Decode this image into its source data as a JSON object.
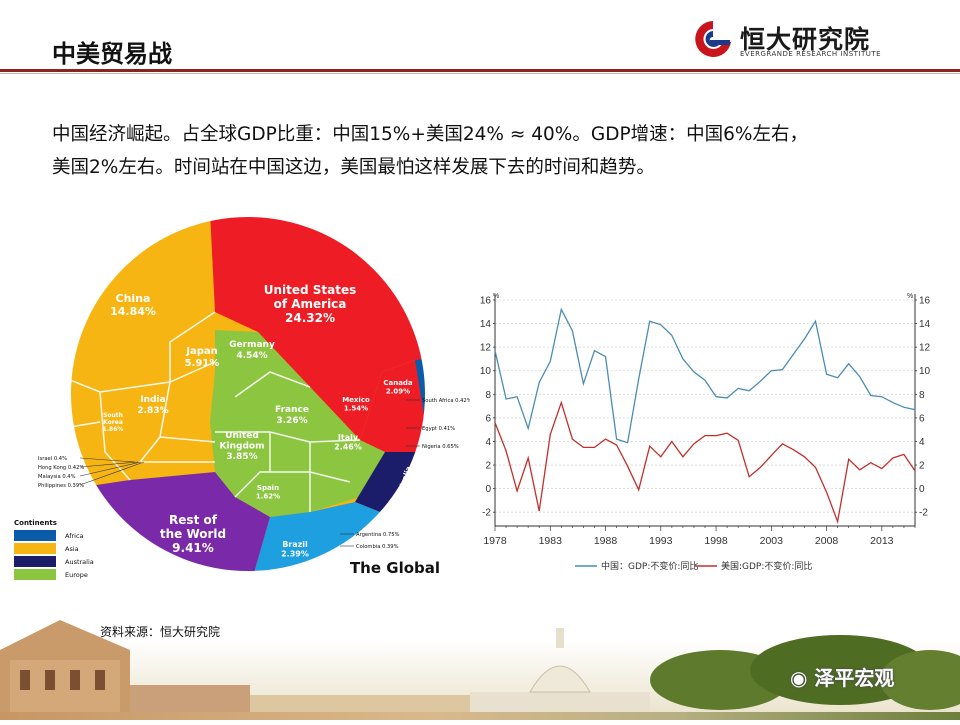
{
  "header": {
    "title": "中美贸易战",
    "logo_cn": "恒大研究院",
    "logo_en": "EVERGRANDE RESEARCH INSTITUTE"
  },
  "body": {
    "line1": "中国经济崛起。占全球GDP比重：中国15%+美国24%  ≈ 40%。GDP增速：中国6%左右，",
    "line2": "美国2%左右。时间站在中国这边，美国最怕这样发展下去的时间和趋势。"
  },
  "source": "资料来源：恒大研究院",
  "watermark": "泽平宏观",
  "colors": {
    "asia": "#f7b514",
    "america": "#ee1c24",
    "europe": "#8cc53f",
    "africa": "#0b5ca8",
    "australia": "#1b1d6a",
    "rest": "#7a2aa8",
    "brazil": "#1e9fe0",
    "china_line": "#4a8db3",
    "us_line": "#c0302c",
    "rule": "#8a2321"
  },
  "chart_data": [
    {
      "type": "pie",
      "title": "The Global",
      "legend": {
        "title": "Continents",
        "items": [
          {
            "name": "Africa",
            "color": "#0b5ca8"
          },
          {
            "name": "Asia",
            "color": "#f7b514"
          },
          {
            "name": "Australia",
            "color": "#1b1d6a"
          },
          {
            "name": "Europe",
            "color": "#8cc53f"
          }
        ]
      },
      "labels": [
        {
          "name": "United States of America",
          "value": "24.32%"
        },
        {
          "name": "China",
          "value": "14.84%"
        },
        {
          "name": "Japan",
          "value": "5.91%"
        },
        {
          "name": "Germany",
          "value": "4.54%"
        },
        {
          "name": "France",
          "value": "3.26%"
        },
        {
          "name": "United Kingdom",
          "value": "3.85%"
        },
        {
          "name": "India",
          "value": "2.83%"
        },
        {
          "name": "Italy",
          "value": "2.46%"
        },
        {
          "name": "Canada",
          "value": "2.09%"
        },
        {
          "name": "Mexico",
          "value": "1.54%"
        },
        {
          "name": "Spain",
          "value": "1.62%"
        },
        {
          "name": "Australia",
          "value": "1.81%"
        },
        {
          "name": "Brazil",
          "value": "2.39%"
        },
        {
          "name": "South Korea",
          "value": "1.86%"
        },
        {
          "name": "Rest of the World",
          "value": "9.41%"
        }
      ],
      "small_labels": [
        "South Africa 0.42%",
        "Egypt 0.41%",
        "Nigeria 0.65%",
        "Argentina 0.75%",
        "Colombia 0.39%",
        "Israel 0.4%",
        "Hong Kong 0.42%",
        "Malaysia 0.4%",
        "Philippines 0.39%"
      ]
    },
    {
      "type": "line",
      "ylim": [
        -3,
        16
      ],
      "y_ticks": [
        -2,
        0,
        2,
        4,
        6,
        8,
        10,
        12,
        14,
        16
      ],
      "y_unit": "%",
      "x_ticks": [
        1978,
        1983,
        1988,
        1993,
        1998,
        2003,
        2008,
        2013
      ],
      "xlim": [
        1978,
        2016
      ],
      "x": [
        1978,
        1979,
        1980,
        1981,
        1982,
        1983,
        1984,
        1985,
        1986,
        1987,
        1988,
        1989,
        1990,
        1991,
        1992,
        1993,
        1994,
        1995,
        1996,
        1997,
        1998,
        1999,
        2000,
        2001,
        2002,
        2003,
        2004,
        2005,
        2006,
        2007,
        2008,
        2009,
        2010,
        2011,
        2012,
        2013,
        2014,
        2015,
        2016
      ],
      "series": [
        {
          "name": "中国：GDP:不变价:同比",
          "color": "#4a8db3",
          "values": [
            11.7,
            7.6,
            7.8,
            5.1,
            9.0,
            10.8,
            15.2,
            13.4,
            8.9,
            11.7,
            11.2,
            4.2,
            3.9,
            9.3,
            14.2,
            13.9,
            13.0,
            11.0,
            9.9,
            9.2,
            7.8,
            7.7,
            8.5,
            8.3,
            9.1,
            10.0,
            10.1,
            11.4,
            12.7,
            14.2,
            9.7,
            9.4,
            10.6,
            9.5,
            7.9,
            7.8,
            7.3,
            6.9,
            6.7
          ]
        },
        {
          "name": "美国:GDP:不变价:同比",
          "color": "#c0302c",
          "values": [
            5.6,
            3.2,
            -0.2,
            2.6,
            -1.9,
            4.6,
            7.3,
            4.2,
            3.5,
            3.5,
            4.2,
            3.7,
            1.9,
            -0.1,
            3.6,
            2.7,
            4.0,
            2.7,
            3.8,
            4.5,
            4.5,
            4.7,
            4.1,
            1.0,
            1.8,
            2.8,
            3.8,
            3.3,
            2.7,
            1.8,
            -0.3,
            -2.8,
            2.5,
            1.6,
            2.2,
            1.7,
            2.6,
            2.9,
            1.5
          ]
        }
      ]
    }
  ]
}
